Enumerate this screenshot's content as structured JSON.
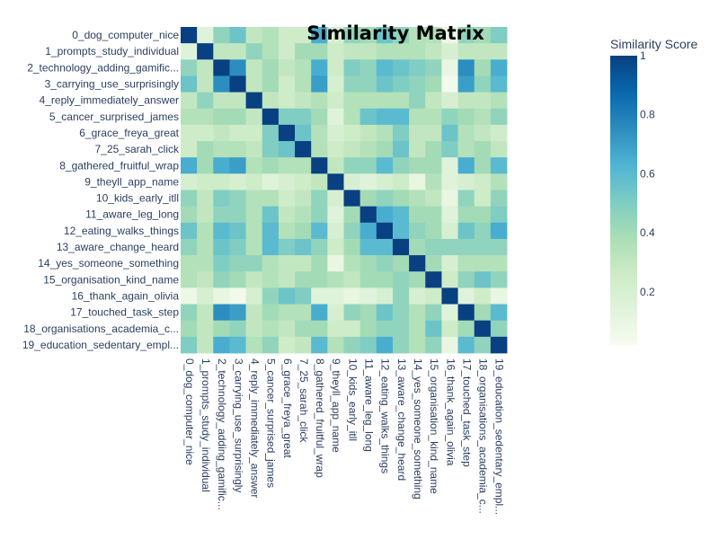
{
  "chart_data": {
    "type": "heatmap",
    "title": "Similarity Matrix",
    "colorbar": {
      "title": "Similarity Score",
      "range": [
        0.02,
        1
      ],
      "ticks": [
        0.2,
        0.4,
        0.6,
        0.8,
        1
      ],
      "tick_labels": [
        "0.2",
        "0.4",
        "0.6",
        "0.8",
        "1"
      ],
      "colorscale": "GnBu",
      "colors": [
        "#f7fcf0",
        "#e0f3db",
        "#ccebc5",
        "#a8ddb5",
        "#7bccc4",
        "#4eb3d3",
        "#2b8cbe",
        "#0868ac",
        "#084081"
      ]
    },
    "row_labels": [
      "0_dog_computer_nice",
      "1_prompts_study_individual",
      "2_technology_adding_gamific...",
      "3_carrying_use_surprisingly",
      "4_reply_immediately_answer",
      "5_cancer_surprised_james",
      "6_grace_freya_great",
      "7_25_sarah_click",
      "8_gathered_fruitful_wrap",
      "9_theyll_app_name",
      "10_kids_early_itll",
      "11_aware_leg_long",
      "12_eating_walks_things",
      "13_aware_change_heard",
      "14_yes_someone_something",
      "15_organisation_kind_name",
      "16_thank_again_olivia",
      "17_touched_task_step",
      "18_organisations_academia_c...",
      "19_education_sedentary_empl..."
    ],
    "col_labels": [
      "0_dog_computer_nice",
      "1_prompts_study_individual",
      "2_technology_adding_gamific...",
      "3_carrying_use_surprisingly",
      "4_reply_immediately_answer",
      "5_cancer_surprised_james",
      "6_grace_freya_great",
      "7_25_sarah_click",
      "8_gathered_fruitful_wrap",
      "9_theyll_app_name",
      "10_kids_early_itll",
      "11_aware_leg_long",
      "12_eating_walks_things",
      "13_aware_change_heard",
      "14_yes_someone_something",
      "15_organisation_kind_name",
      "16_thank_again_olivia",
      "17_touched_task_step",
      "18_organisations_academia_c...",
      "19_education_sedentary_empl..."
    ],
    "values": [
      [
        1.0,
        0.15,
        0.45,
        0.55,
        0.3,
        0.35,
        0.25,
        0.25,
        0.65,
        0.2,
        0.45,
        0.4,
        0.55,
        0.45,
        0.35,
        0.35,
        0.08,
        0.45,
        0.4,
        0.5
      ],
      [
        0.15,
        1.0,
        0.3,
        0.3,
        0.45,
        0.35,
        0.25,
        0.4,
        0.4,
        0.25,
        0.3,
        0.3,
        0.35,
        0.35,
        0.35,
        0.3,
        0.2,
        0.3,
        0.3,
        0.3
      ],
      [
        0.45,
        0.3,
        1.0,
        0.75,
        0.3,
        0.4,
        0.3,
        0.35,
        0.65,
        0.25,
        0.5,
        0.45,
        0.6,
        0.55,
        0.5,
        0.45,
        0.1,
        0.75,
        0.4,
        0.65
      ],
      [
        0.55,
        0.3,
        0.75,
        1.0,
        0.3,
        0.4,
        0.25,
        0.35,
        0.7,
        0.2,
        0.45,
        0.45,
        0.55,
        0.5,
        0.45,
        0.4,
        0.05,
        0.7,
        0.45,
        0.6
      ],
      [
        0.3,
        0.45,
        0.3,
        0.3,
        1.0,
        0.3,
        0.25,
        0.3,
        0.35,
        0.25,
        0.35,
        0.35,
        0.35,
        0.35,
        0.45,
        0.3,
        0.2,
        0.3,
        0.3,
        0.35
      ],
      [
        0.35,
        0.35,
        0.4,
        0.4,
        0.3,
        1.0,
        0.5,
        0.5,
        0.4,
        0.15,
        0.35,
        0.55,
        0.6,
        0.6,
        0.35,
        0.35,
        0.45,
        0.4,
        0.35,
        0.45
      ],
      [
        0.25,
        0.25,
        0.3,
        0.25,
        0.25,
        0.5,
        1.0,
        0.55,
        0.35,
        0.2,
        0.25,
        0.3,
        0.35,
        0.5,
        0.3,
        0.3,
        0.55,
        0.35,
        0.3,
        0.25
      ],
      [
        0.25,
        0.4,
        0.35,
        0.35,
        0.3,
        0.5,
        0.55,
        1.0,
        0.35,
        0.25,
        0.3,
        0.35,
        0.4,
        0.55,
        0.3,
        0.4,
        0.5,
        0.35,
        0.4,
        0.3
      ],
      [
        0.65,
        0.4,
        0.65,
        0.7,
        0.35,
        0.4,
        0.35,
        0.35,
        1.0,
        0.3,
        0.45,
        0.45,
        0.6,
        0.45,
        0.4,
        0.4,
        0.15,
        0.65,
        0.4,
        0.6
      ],
      [
        0.2,
        0.25,
        0.25,
        0.2,
        0.25,
        0.15,
        0.2,
        0.25,
        0.3,
        1.0,
        0.2,
        0.15,
        0.2,
        0.25,
        0.1,
        0.35,
        0.15,
        0.2,
        0.25,
        0.35
      ],
      [
        0.45,
        0.3,
        0.5,
        0.45,
        0.35,
        0.35,
        0.25,
        0.3,
        0.45,
        0.2,
        1.0,
        0.4,
        0.45,
        0.4,
        0.35,
        0.3,
        0.1,
        0.45,
        0.25,
        0.45
      ],
      [
        0.4,
        0.3,
        0.45,
        0.45,
        0.35,
        0.55,
        0.3,
        0.35,
        0.45,
        0.15,
        0.4,
        1.0,
        0.65,
        0.6,
        0.4,
        0.4,
        0.15,
        0.4,
        0.4,
        0.5
      ],
      [
        0.55,
        0.35,
        0.6,
        0.55,
        0.35,
        0.6,
        0.35,
        0.4,
        0.6,
        0.2,
        0.45,
        0.65,
        1.0,
        0.6,
        0.45,
        0.4,
        0.2,
        0.55,
        0.45,
        0.65
      ],
      [
        0.45,
        0.35,
        0.55,
        0.5,
        0.35,
        0.6,
        0.5,
        0.55,
        0.45,
        0.25,
        0.4,
        0.6,
        0.6,
        1.0,
        0.4,
        0.45,
        0.45,
        0.45,
        0.45,
        0.45
      ],
      [
        0.35,
        0.35,
        0.5,
        0.45,
        0.45,
        0.35,
        0.3,
        0.3,
        0.4,
        0.1,
        0.35,
        0.4,
        0.45,
        0.4,
        1.0,
        0.4,
        0.2,
        0.35,
        0.35,
        0.35
      ],
      [
        0.35,
        0.3,
        0.45,
        0.4,
        0.3,
        0.35,
        0.3,
        0.4,
        0.4,
        0.35,
        0.3,
        0.4,
        0.4,
        0.45,
        0.4,
        1.0,
        0.25,
        0.45,
        0.55,
        0.45
      ],
      [
        0.08,
        0.2,
        0.1,
        0.05,
        0.2,
        0.45,
        0.55,
        0.5,
        0.15,
        0.15,
        0.1,
        0.15,
        0.2,
        0.45,
        0.2,
        0.25,
        1.0,
        0.15,
        0.25,
        0.1
      ],
      [
        0.45,
        0.3,
        0.75,
        0.7,
        0.3,
        0.4,
        0.35,
        0.35,
        0.65,
        0.2,
        0.45,
        0.4,
        0.55,
        0.45,
        0.35,
        0.45,
        0.15,
        1.0,
        0.4,
        0.6
      ],
      [
        0.4,
        0.3,
        0.4,
        0.45,
        0.3,
        0.35,
        0.3,
        0.4,
        0.4,
        0.25,
        0.25,
        0.4,
        0.45,
        0.45,
        0.35,
        0.55,
        0.25,
        0.4,
        1.0,
        0.45
      ],
      [
        0.5,
        0.3,
        0.65,
        0.6,
        0.35,
        0.45,
        0.25,
        0.3,
        0.6,
        0.35,
        0.45,
        0.5,
        0.65,
        0.45,
        0.35,
        0.45,
        0.1,
        0.6,
        0.45,
        1.0
      ]
    ]
  }
}
